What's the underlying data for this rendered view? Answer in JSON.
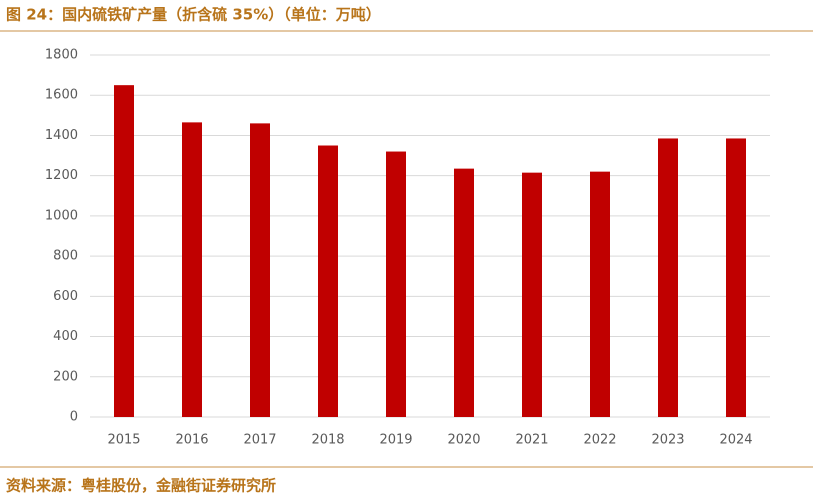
{
  "chart_data": {
    "type": "bar",
    "title": "图 24：国内硫铁矿产量（折含硫 35%）（单位：万吨）",
    "source": "资料来源：粤桂股份，金融街证券研究所",
    "categories": [
      "2015",
      "2016",
      "2017",
      "2018",
      "2019",
      "2020",
      "2021",
      "2022",
      "2023",
      "2024"
    ],
    "values": [
      1650,
      1465,
      1460,
      1350,
      1320,
      1235,
      1215,
      1220,
      1385,
      1385
    ],
    "color": "#c00000",
    "ylim": [
      0,
      1800
    ],
    "yticks": [
      0,
      200,
      400,
      600,
      800,
      1000,
      1200,
      1400,
      1600,
      1800
    ],
    "grid": true
  }
}
